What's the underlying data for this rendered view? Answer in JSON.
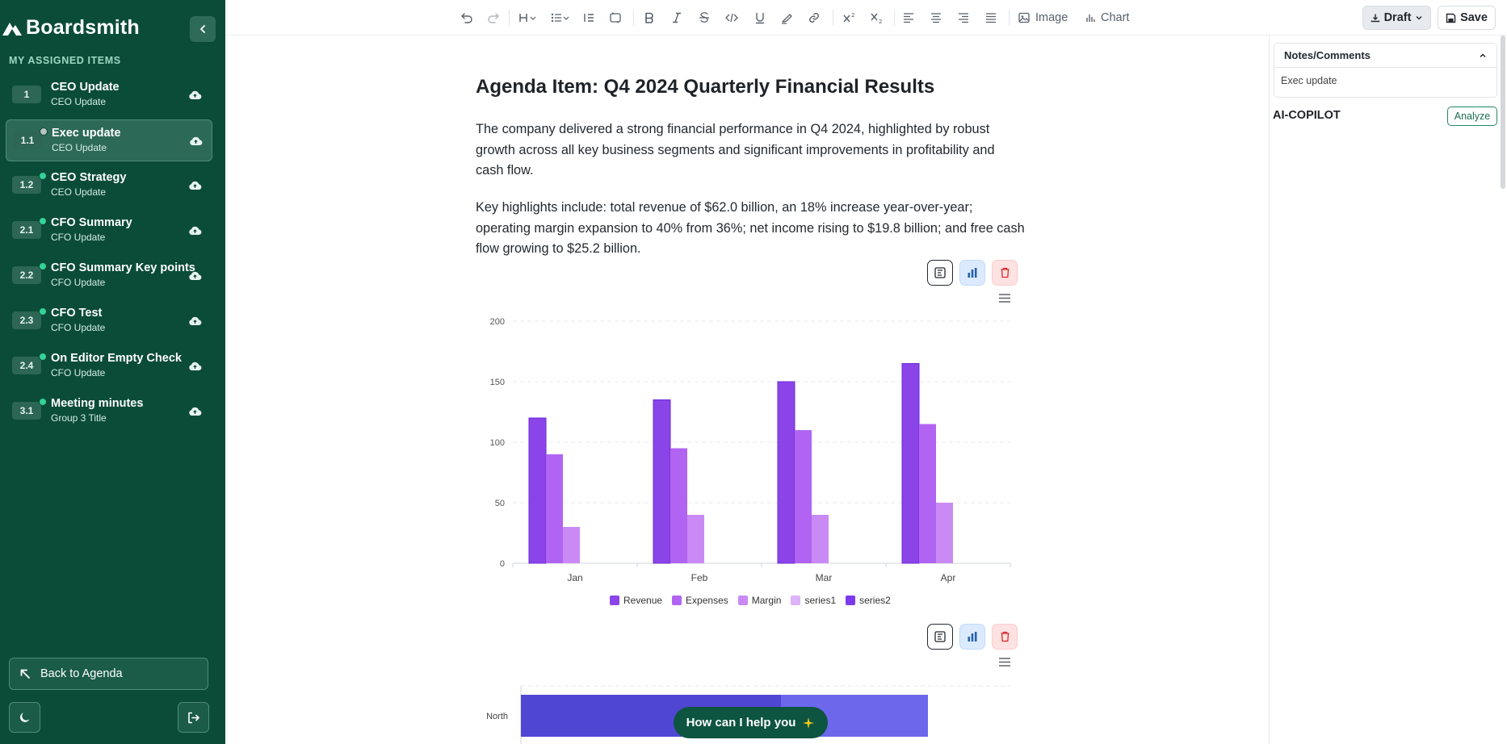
{
  "app": {
    "brand": "Boardsmith"
  },
  "sidebar": {
    "section_label": "MY ASSIGNED ITEMS",
    "items": [
      {
        "num": "1",
        "title": "CEO Update",
        "sub": "CEO Update",
        "status": "none",
        "active": false
      },
      {
        "num": "1.1",
        "title": "Exec update",
        "sub": "CEO Update",
        "status": "grey",
        "active": true
      },
      {
        "num": "1.2",
        "title": "CEO Strategy",
        "sub": "CEO Update",
        "status": "green",
        "active": false
      },
      {
        "num": "2.1",
        "title": "CFO Summary",
        "sub": "CFO Update",
        "status": "green",
        "active": false
      },
      {
        "num": "2.2",
        "title": "CFO Summary Key points",
        "sub": "CFO Update",
        "status": "green",
        "active": false
      },
      {
        "num": "2.3",
        "title": "CFO Test",
        "sub": "CFO Update",
        "status": "green",
        "active": false
      },
      {
        "num": "2.4",
        "title": "On Editor Empty Check",
        "sub": "CFO Update",
        "status": "green",
        "active": false
      },
      {
        "num": "3.1",
        "title": "Meeting minutes",
        "sub": "Group 3 Title",
        "status": "green",
        "active": false
      }
    ],
    "back_label": "Back to Agenda"
  },
  "toolbar": {
    "image_label": "Image",
    "chart_label": "Chart",
    "draft_label": "Draft",
    "save_label": "Save"
  },
  "document": {
    "title": "Agenda Item: Q4 2024 Quarterly Financial Results",
    "para1": "The company delivered a strong financial performance in Q4 2024, highlighted by robust growth across all key business segments and significant improvements in profitability and cash flow.",
    "para2": "Key highlights include: total revenue of $62.0 billion, an 18% increase year-over-year; operating margin expansion to 40% from 36%; net income rising to $19.8 billion; and free cash flow growing to $25.2 billion."
  },
  "chart_data": [
    {
      "type": "bar",
      "categories": [
        "Jan",
        "Feb",
        "Mar",
        "Apr"
      ],
      "series": [
        {
          "name": "Revenue",
          "values": [
            120,
            135,
            150,
            165
          ],
          "color": "#8b44e8"
        },
        {
          "name": "Expenses",
          "values": [
            90,
            95,
            110,
            115
          ],
          "color": "#b164f2"
        },
        {
          "name": "Margin",
          "values": [
            30,
            40,
            40,
            50
          ],
          "color": "#c98af5"
        },
        {
          "name": "series1",
          "values": [
            null,
            null,
            null,
            null
          ],
          "color": "#dcb3f8"
        },
        {
          "name": "series2",
          "values": [
            null,
            null,
            null,
            null
          ],
          "color": "#7c3aed"
        }
      ],
      "yticks": [
        0,
        50,
        100,
        150,
        200
      ],
      "ylim": [
        0,
        200
      ],
      "grid": true,
      "legend": "bottom"
    },
    {
      "type": "bar",
      "orientation": "horizontal",
      "categories": [
        "North"
      ],
      "series": [
        {
          "name": "",
          "values": [
            null
          ],
          "colors": [
            "#5046d4",
            "#6d67ec"
          ]
        }
      ]
    }
  ],
  "help": {
    "label": "How can I help you"
  },
  "right_panel": {
    "notes_title": "Notes/Comments",
    "notes_body": "Exec update",
    "copilot_title": "AI-COPILOT",
    "analyze_label": "Analyze"
  }
}
